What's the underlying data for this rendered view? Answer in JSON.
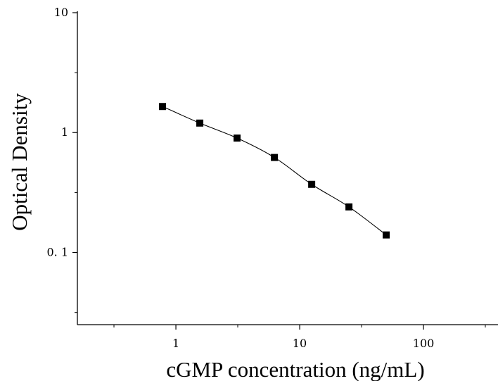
{
  "chart_data": {
    "type": "scatter",
    "title": "",
    "xlabel": "cGMP concentration (ng/mL)",
    "ylabel": "Optical Density",
    "x_scale": "log",
    "y_scale": "log",
    "xlim": [
      0.16,
      400
    ],
    "ylim": [
      0.025,
      10
    ],
    "x_ticks": [
      {
        "value": 1,
        "label": "1"
      },
      {
        "value": 10,
        "label": "10"
      },
      {
        "value": 100,
        "label": "100"
      }
    ],
    "y_ticks": [
      {
        "value": 0.1,
        "label": "0. 1"
      },
      {
        "value": 1,
        "label": "1"
      },
      {
        "value": 10,
        "label": "10"
      }
    ],
    "grid": false,
    "legend": "none",
    "series": [
      {
        "x": [
          0.78,
          1.56,
          3.12,
          6.25,
          12.5,
          25,
          50
        ],
        "y": [
          1.65,
          1.2,
          0.9,
          0.62,
          0.37,
          0.24,
          0.14
        ],
        "marker": "square",
        "fit_line": true
      }
    ],
    "colors": {
      "axis": "#000000",
      "marker": "#000000",
      "line": "#000000"
    }
  }
}
